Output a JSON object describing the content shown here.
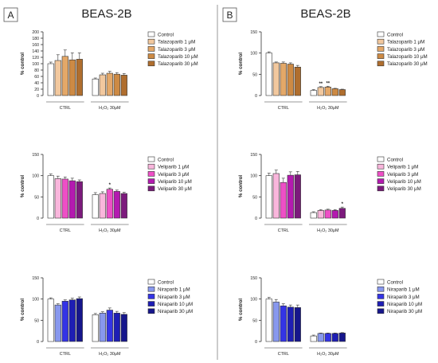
{
  "panels": [
    {
      "letter": "A",
      "title": "BEAS-2B"
    },
    {
      "letter": "B",
      "title": "BEAS-2B"
    }
  ],
  "colors": {
    "control": "#ffffff",
    "talazoparib": [
      "#f2c89e",
      "#e4a868",
      "#cd8a44",
      "#b06e2e",
      "#7a4a1c"
    ],
    "veliparib": [
      "#f9b6dc",
      "#ee4fc6",
      "#b41ab0",
      "#7c1a7c",
      "#46124a"
    ],
    "niraparib": [
      "#8898ee",
      "#3434e6",
      "#1e1eb4",
      "#16168c",
      "#0c0c50"
    ]
  },
  "chart_data": [
    {
      "type": "bar",
      "panel": "A",
      "ylabel": "% control",
      "ylim": [
        0,
        200
      ],
      "yticks": [
        0,
        20,
        40,
        60,
        80,
        100,
        120,
        140,
        160,
        180,
        200
      ],
      "groups": [
        "CTRL",
        "H₂O₂ 30μM"
      ],
      "colorset": "talazoparib",
      "series": [
        {
          "name": "Control",
          "values": [
            100,
            52
          ],
          "err": [
            5,
            3
          ]
        },
        {
          "name": "Talazoparib 1 μM",
          "values": [
            110,
            65
          ],
          "err": [
            18,
            5
          ]
        },
        {
          "name": "Talazoparib 3 μM",
          "values": [
            123,
            70
          ],
          "err": [
            20,
            6
          ]
        },
        {
          "name": "Talazoparib 10 μM",
          "values": [
            112,
            67
          ],
          "err": [
            22,
            5
          ]
        },
        {
          "name": "Talazoparib 30 μM",
          "values": [
            114,
            64
          ],
          "err": [
            20,
            5
          ]
        }
      ],
      "marks": []
    },
    {
      "type": "bar",
      "panel": "B",
      "ylabel": "% control",
      "ylim": [
        0,
        150
      ],
      "yticks": [
        0,
        50,
        100,
        150
      ],
      "groups": [
        "CTRL",
        "H₂O₂ 30μM"
      ],
      "colorset": "talazoparib",
      "series": [
        {
          "name": "Control",
          "values": [
            100,
            12
          ],
          "err": [
            3,
            2
          ]
        },
        {
          "name": "Talazoparib 1 μM",
          "values": [
            77,
            19
          ],
          "err": [
            2,
            2
          ]
        },
        {
          "name": "Talazoparib 3 μM",
          "values": [
            76,
            20
          ],
          "err": [
            3,
            2
          ]
        },
        {
          "name": "Talazoparib 10 μM",
          "values": [
            74,
            16
          ],
          "err": [
            3,
            1
          ]
        },
        {
          "name": "Talazoparib 30 μM",
          "values": [
            67,
            14
          ],
          "err": [
            4,
            1
          ]
        }
      ],
      "marks": [
        {
          "group": 1,
          "series": 1,
          "text": "**"
        },
        {
          "group": 1,
          "series": 2,
          "text": "**"
        }
      ]
    },
    {
      "type": "bar",
      "panel": "A",
      "ylabel": "% control",
      "ylim": [
        0,
        150
      ],
      "yticks": [
        0,
        50,
        100,
        150
      ],
      "groups": [
        "CTRL",
        "H₂O₂ 30μM"
      ],
      "colorset": "veliparib",
      "series": [
        {
          "name": "Control",
          "values": [
            100,
            55
          ],
          "err": [
            4,
            5
          ]
        },
        {
          "name": "Veliparib  1 μM",
          "values": [
            93,
            58
          ],
          "err": [
            6,
            4
          ]
        },
        {
          "name": "Veliparib  3 μM",
          "values": [
            92,
            68
          ],
          "err": [
            5,
            3
          ]
        },
        {
          "name": "Veliparib  10 μM",
          "values": [
            88,
            63
          ],
          "err": [
            6,
            3
          ]
        },
        {
          "name": "Veliparib  30 μM",
          "values": [
            86,
            58
          ],
          "err": [
            4,
            3
          ]
        }
      ],
      "marks": [
        {
          "group": 1,
          "series": 2,
          "text": "*"
        }
      ]
    },
    {
      "type": "bar",
      "panel": "B",
      "ylabel": "% control",
      "ylim": [
        0,
        150
      ],
      "yticks": [
        0,
        50,
        100,
        150
      ],
      "groups": [
        "CTRL",
        "H₂O₂ 30μM"
      ],
      "colorset": "veliparib",
      "series": [
        {
          "name": "Control",
          "values": [
            100,
            13
          ],
          "err": [
            6,
            2
          ]
        },
        {
          "name": "Veliparib 1 μM",
          "values": [
            105,
            18
          ],
          "err": [
            8,
            2
          ]
        },
        {
          "name": "Veliparib  3 μM",
          "values": [
            84,
            19
          ],
          "err": [
            10,
            2
          ]
        },
        {
          "name": "Veliparib  10 μM",
          "values": [
            101,
            18
          ],
          "err": [
            8,
            2
          ]
        },
        {
          "name": "Veliparib  30 μM",
          "values": [
            102,
            23
          ],
          "err": [
            8,
            3
          ]
        }
      ],
      "marks": [
        {
          "group": 1,
          "series": 4,
          "text": "*"
        }
      ]
    },
    {
      "type": "bar",
      "panel": "A",
      "ylabel": "% control",
      "ylim": [
        0,
        150
      ],
      "yticks": [
        0,
        50,
        100,
        150
      ],
      "groups": [
        "CTRL",
        "H₂O₂ 30μM"
      ],
      "colorset": "niraparib",
      "series": [
        {
          "name": "Control",
          "values": [
            100,
            63
          ],
          "err": [
            3,
            3
          ]
        },
        {
          "name": "Niraparib 1 μM",
          "values": [
            86,
            67
          ],
          "err": [
            3,
            3
          ]
        },
        {
          "name": "Niraparib 3 μM",
          "values": [
            95,
            74
          ],
          "err": [
            3,
            5
          ]
        },
        {
          "name": "Niraparib 10 μM",
          "values": [
            98,
            67
          ],
          "err": [
            4,
            4
          ]
        },
        {
          "name": "Niraparib 30 μM",
          "values": [
            101,
            64
          ],
          "err": [
            4,
            4
          ]
        }
      ],
      "marks": []
    },
    {
      "type": "bar",
      "panel": "B",
      "ylabel": "% control",
      "ylim": [
        0,
        150
      ],
      "yticks": [
        0,
        50,
        100,
        150
      ],
      "groups": [
        "CTRL",
        "H₂O₂ 30μM"
      ],
      "colorset": "niraparib",
      "series": [
        {
          "name": "Control",
          "values": [
            100,
            13
          ],
          "err": [
            4,
            2
          ]
        },
        {
          "name": "Niraparib 1 μM",
          "values": [
            93,
            19
          ],
          "err": [
            6,
            1
          ]
        },
        {
          "name": "Niraparib 3 μM",
          "values": [
            84,
            19
          ],
          "err": [
            5,
            1
          ]
        },
        {
          "name": "Niraparib 10 μM",
          "values": [
            81,
            19
          ],
          "err": [
            5,
            1
          ]
        },
        {
          "name": "Niraparib 30 μM",
          "values": [
            80,
            20
          ],
          "err": [
            6,
            1
          ]
        }
      ],
      "marks": []
    }
  ]
}
